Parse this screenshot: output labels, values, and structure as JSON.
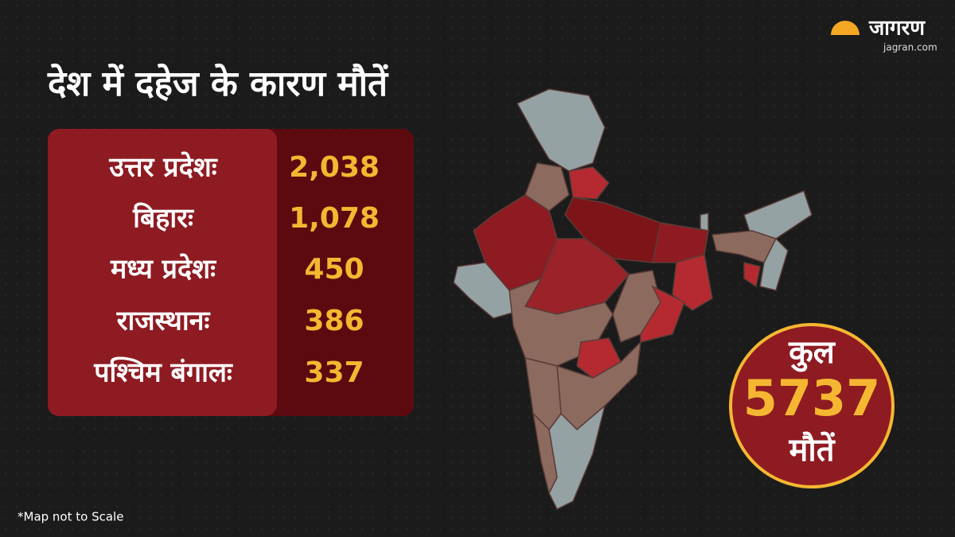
{
  "logo": {
    "name": "जागरण",
    "site": "jagran.com"
  },
  "title": "देश में दहेज के कारण मौतें",
  "table": {
    "rows": [
      [
        "उत्तर प्रदेशः",
        "2,038"
      ],
      [
        "बिहारः",
        "1,078"
      ],
      [
        "मध्य प्रदेशः",
        "450"
      ],
      [
        "राजस्थानः",
        "386"
      ],
      [
        "पश्चिम बंगालः",
        "337"
      ]
    ]
  },
  "total": {
    "label": "कुल",
    "value": "5737",
    "unit": "मौतें"
  },
  "footnote": "*Map not to Scale"
}
